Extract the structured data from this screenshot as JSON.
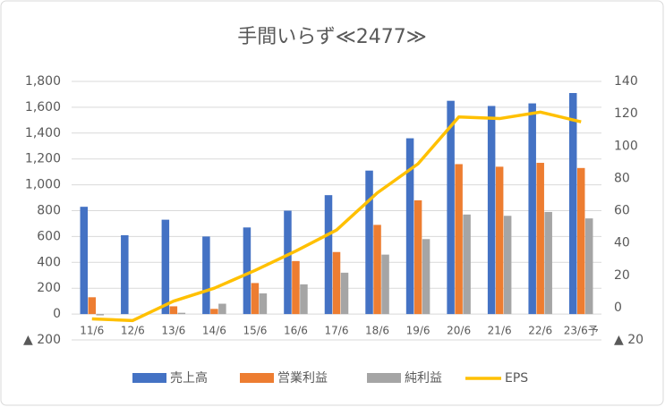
{
  "chart_data": {
    "type": "bar_line",
    "title": "手間いらず≪2477≫",
    "categories": [
      "11/6",
      "12/6",
      "13/6",
      "14/6",
      "15/6",
      "16/6",
      "17/6",
      "18/6",
      "19/6",
      "20/6",
      "21/6",
      "22/6",
      "23/6予"
    ],
    "series": [
      {
        "name": "売上高",
        "color": "#4472c4",
        "type": "bar",
        "values": [
          830,
          610,
          730,
          600,
          670,
          800,
          920,
          1110,
          1360,
          1650,
          1610,
          1630,
          1710
        ]
      },
      {
        "name": "営業利益",
        "color": "#ed7d31",
        "type": "bar",
        "values": [
          130,
          0,
          60,
          40,
          240,
          410,
          480,
          690,
          880,
          1160,
          1140,
          1170,
          1130
        ]
      },
      {
        "name": "純利益",
        "color": "#a5a5a5",
        "type": "bar",
        "values": [
          -10,
          0,
          10,
          80,
          160,
          230,
          320,
          460,
          580,
          770,
          760,
          790,
          740
        ]
      },
      {
        "name": "EPS",
        "color": "#ffc000",
        "type": "line",
        "axis": "y2",
        "values": [
          -7,
          -8,
          4,
          12,
          23,
          35,
          48,
          71,
          89,
          118,
          117,
          121,
          115
        ]
      }
    ],
    "ylim": [
      -200,
      1800
    ],
    "yticks": [
      {
        "value": -200,
        "label": "▲ 200"
      },
      0,
      200,
      400,
      600,
      800,
      {
        "value": 1000,
        "label": "1,000"
      },
      {
        "value": 1200,
        "label": "1,200"
      },
      {
        "value": 1400,
        "label": "1,400"
      },
      {
        "value": 1600,
        "label": "1,600"
      },
      {
        "value": 1800,
        "label": "1,800"
      }
    ],
    "y2lim": [
      -20,
      140
    ],
    "y2ticks": [
      {
        "value": -20,
        "label": "▲ 20"
      },
      0,
      20,
      40,
      60,
      80,
      100,
      120,
      140
    ],
    "grid": true
  }
}
